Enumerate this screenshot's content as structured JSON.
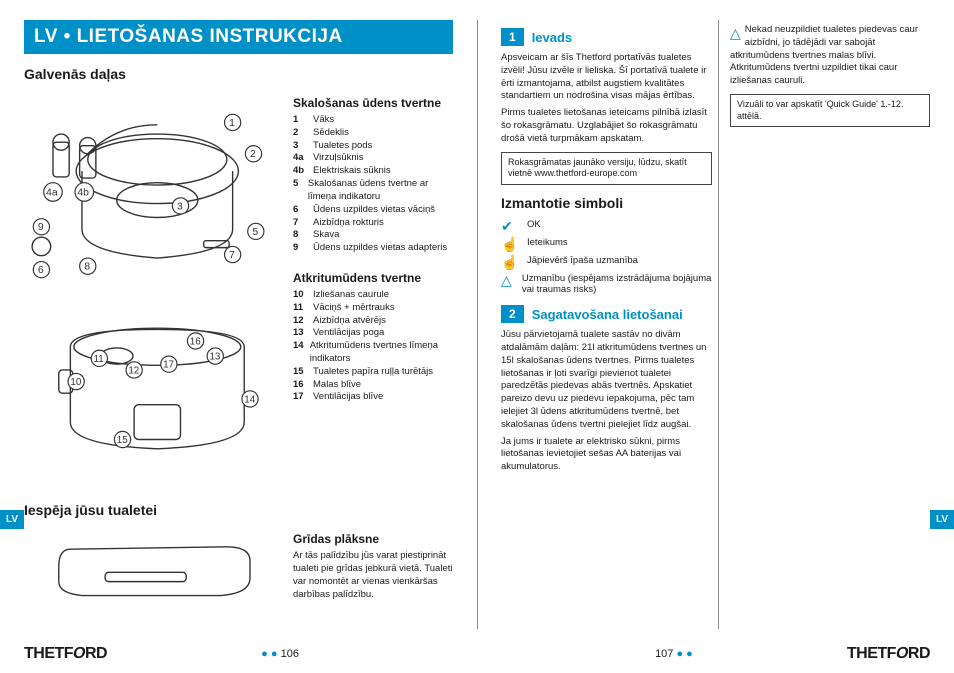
{
  "title": "LV • LIETOŠANAS INSTRUKCIJA",
  "left": {
    "h_main": "Galvenās daļas",
    "h_option": "Iespēja jūsu tualetei",
    "flush": {
      "title": "Skalošanas ūdens tvertne",
      "items": [
        {
          "n": "1",
          "t": "Vāks"
        },
        {
          "n": "2",
          "t": "Sēdeklis"
        },
        {
          "n": "3",
          "t": "Tualetes pods"
        },
        {
          "n": "4a",
          "t": "Virzuļsūknis"
        },
        {
          "n": "4b",
          "t": "Elektriskais sūknis"
        },
        {
          "n": "5",
          "t": "Skalošanas ūdens tvertne ar līmeņa indikatoru"
        },
        {
          "n": "6",
          "t": "Ūdens uzpildes vietas vāciņš"
        },
        {
          "n": "7",
          "t": "Aizbīdņa rokturis"
        },
        {
          "n": "8",
          "t": "Skava"
        },
        {
          "n": "9",
          "t": "Ūdens uzpildes vietas adapteris"
        }
      ]
    },
    "waste": {
      "title": "Atkritumūdens tvertne",
      "items": [
        {
          "n": "10",
          "t": "Izliešanas caurule"
        },
        {
          "n": "11",
          "t": "Vāciņš + mērtrauks"
        },
        {
          "n": "12",
          "t": "Aizbīdņa atvērējs"
        },
        {
          "n": "13",
          "t": "Ventilācijas poga"
        },
        {
          "n": "14",
          "t": "Atkritumūdens tvertnes līmeņa indikators"
        },
        {
          "n": "15",
          "t": "Tualetes papīra ruļļa turētājs"
        },
        {
          "n": "16",
          "t": "Malas blīve"
        },
        {
          "n": "17",
          "t": "Ventilācijas blīve"
        }
      ]
    },
    "floor": {
      "title": "Grīdas plāksne",
      "text": "Ar tās palīdzību jūs varat piestiprināt tualeti pie grīdas jebkurā vietā. Tualeti var nomontēt ar vienas vienkāršas darbības palīdzību."
    }
  },
  "right": {
    "s1": {
      "num": "1",
      "title": "Ievads",
      "p1": "Apsveicam ar šīs Thetford portatīvās tualetes izvēli! Jūsu izvēle ir lieliska. Šī portatīvā tualete ir ērti izmantojama, atbilst augstiem kvalitātes standartiem un nodrošina visas mājas ērtības.",
      "p2": "Pirms tualetes lietošanas ieteicams pilnībā izlasīt šo rokasgrāmatu. Uzglabājiet šo rokasgrāmatu drošā vietā turpmākam apskatam.",
      "note": "Rokasgrāmatas jaunāko versiju, lūdzu, skatīt vietnē www.thetford-europe.com"
    },
    "sym": {
      "title": "Izmantotie simboli",
      "items": [
        {
          "ico": "✔",
          "t": "OK"
        },
        {
          "ico": "☝",
          "t": "Ieteikums"
        },
        {
          "ico": "☝",
          "t": "Jāpievērš īpaša uzmanība"
        },
        {
          "ico": "△",
          "t": "Uzmanību (iespējams izstrādājuma bojājuma vai traumas risks)"
        }
      ]
    },
    "s2": {
      "num": "2",
      "title": "Sagatavošana lietošanai",
      "p1": "Jūsu pārvietojamā tualete sastāv no divām atdalāmām daļām: 21l atkritumūdens tvertnes un 15l skalošanas ūdens tvertnes. Pirms tualetes lietošanas ir ļoti svarīgi pievienot tualetei paredzētās piedevas abās tvertnēs. Apskatiet pareizo devu uz piedevu iepakojuma, pēc tam ielejiet 3l ūdens atkritumūdens tvertnē, bet skalošanas ūdens tvertni pielejiet līdz augšai.",
      "p2": "Ja jums ir tualete ar elektrisko sūkni, pirms lietošanas ievietojiet sešas AA baterijas vai akumulatorus."
    },
    "warn": "Nekad neuzpildiet tualetes piedevas caur aizbīdni, jo tādējādi var sabojāt atkritumūdens tvertnes malas blīvi. Atkritumūdens tvertni uzpildiet tikai caur izliešanas cauruli.",
    "qg": "Vizuāli to var apskatīt 'Quick Guide' 1.-12. attēlā."
  },
  "footer": {
    "brand": "THETFORD",
    "pl": "106",
    "pr": "107",
    "tab": "LV"
  }
}
